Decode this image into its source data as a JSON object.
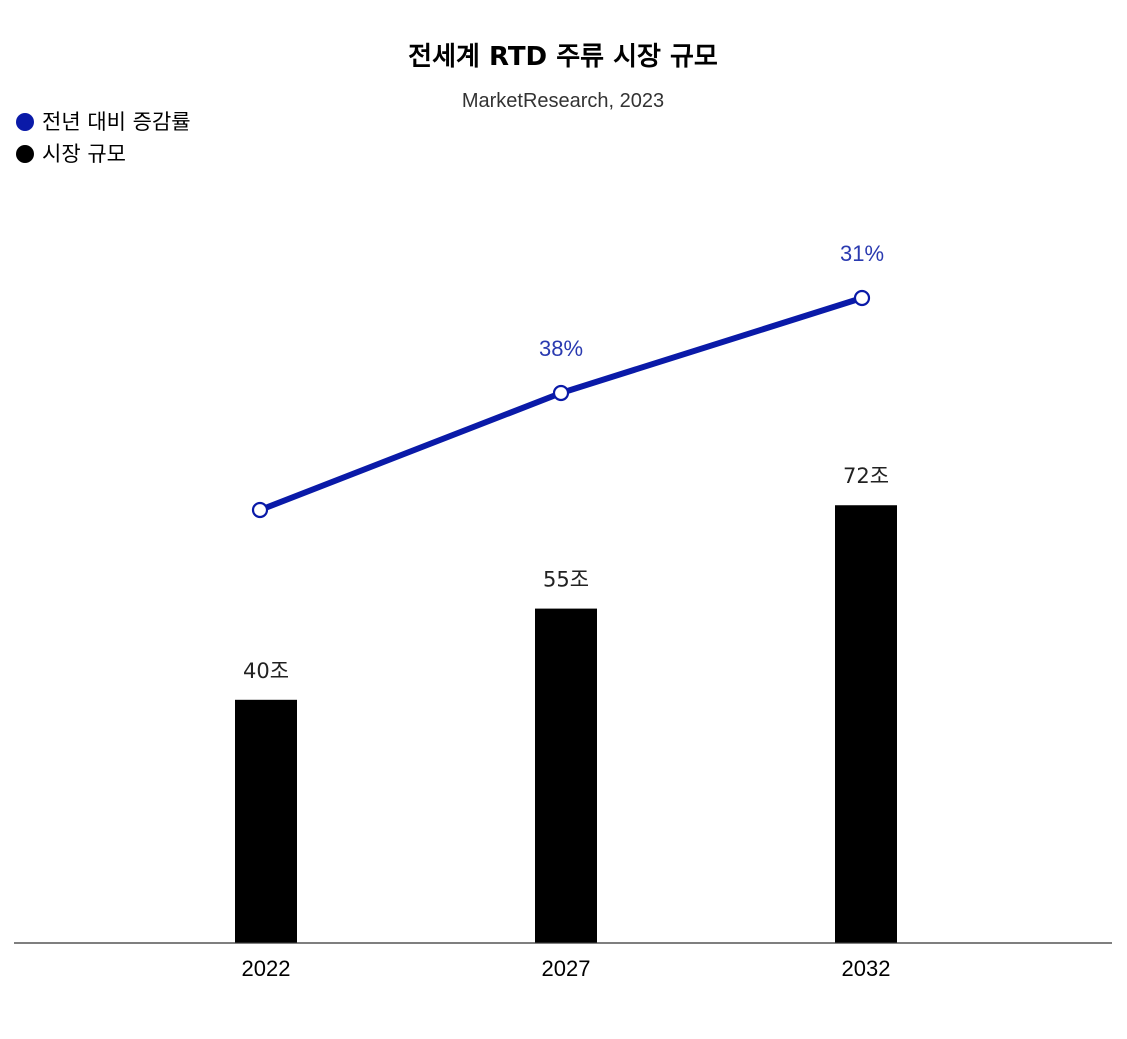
{
  "chart_data": {
    "type": "bar",
    "title": "전세계 RTD 주류 시장 규모",
    "subtitle": "MarketResearch, 2023",
    "categories": [
      "2022",
      "2027",
      "2032"
    ],
    "series": [
      {
        "name": "시장 규모",
        "type": "bar",
        "values": [
          40,
          55,
          72
        ],
        "labels": [
          "40조",
          "55조",
          "72조"
        ],
        "color": "#000000"
      },
      {
        "name": "전년 대비 증감률",
        "type": "line",
        "values": [
          null,
          38,
          31
        ],
        "labels": [
          "",
          "38%",
          "31%"
        ],
        "color": "#0a1aa8"
      }
    ],
    "legend": [
      {
        "label": "전년 대비 증감률",
        "color": "#0a1aa8"
      },
      {
        "label": "시장 규모",
        "color": "#000000"
      }
    ],
    "legend_position": "top-left",
    "grid": false
  }
}
